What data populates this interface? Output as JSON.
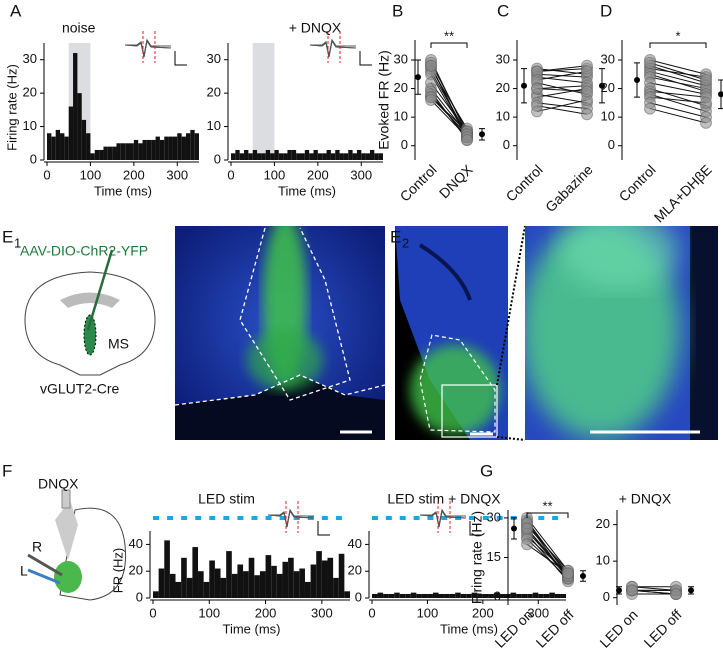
{
  "panels": [
    {
      "label": "A"
    },
    {
      "label": "B"
    },
    {
      "label": "C"
    },
    {
      "label": "D"
    },
    {
      "label": "E",
      "sub": "1"
    },
    {
      "label": "E",
      "sub": "2"
    },
    {
      "label": "F"
    },
    {
      "label": "G"
    }
  ],
  "schematics": {
    "virus": "AAV-DIO-ChR2-YFP",
    "region": "MS",
    "mouse": "vGLUT2-Cre",
    "drug": "DNQX",
    "right": "R",
    "left": "L"
  },
  "chart_data": [
    {
      "type": "histogram",
      "annotation": "noise",
      "shade": [
        50,
        100
      ],
      "xlabel": "Time (ms)",
      "ylabel": "Firing rate (Hz)",
      "bins": [
        0,
        10,
        20,
        30,
        40,
        50,
        60,
        70,
        80,
        90,
        100,
        110,
        120,
        130,
        140,
        150,
        160,
        170,
        180,
        190,
        200,
        210,
        220,
        230,
        240,
        250,
        260,
        270,
        280,
        290,
        300,
        310,
        320,
        330,
        340,
        350
      ],
      "values": [
        8,
        7,
        9,
        8,
        7,
        16,
        32,
        20,
        12,
        8,
        2,
        3,
        3,
        4,
        4,
        4,
        5,
        5,
        5,
        5,
        6,
        5,
        6,
        6,
        6,
        7,
        6,
        7,
        7,
        7,
        8,
        7,
        8,
        9,
        8
      ],
      "xlim": [
        0,
        350
      ],
      "ylim": [
        0,
        35
      ],
      "xticks": [
        0,
        100,
        200,
        300
      ],
      "yticks": [
        0,
        10,
        20,
        30
      ]
    },
    {
      "type": "histogram",
      "title": "+ DNQX",
      "shade": [
        50,
        100
      ],
      "xlabel": "Time (ms)",
      "bins": [
        0,
        10,
        20,
        30,
        40,
        50,
        60,
        70,
        80,
        90,
        100,
        110,
        120,
        130,
        140,
        150,
        160,
        170,
        180,
        190,
        200,
        210,
        220,
        230,
        240,
        250,
        260,
        270,
        280,
        290,
        300,
        310,
        320,
        330,
        340,
        350
      ],
      "values": [
        2,
        3,
        2,
        3,
        2,
        3,
        2,
        2,
        3,
        2,
        3,
        2,
        2,
        3,
        3,
        2,
        2,
        3,
        2,
        3,
        2,
        2,
        3,
        2,
        3,
        2,
        2,
        3,
        2,
        3,
        2,
        2,
        3,
        2,
        2
      ],
      "xlim": [
        0,
        350
      ],
      "ylim": [
        0,
        35
      ],
      "xticks": [
        0,
        100,
        200,
        300
      ],
      "yticks": [
        0,
        10,
        20,
        30
      ]
    },
    {
      "type": "paired",
      "ylabel": "Evoked FR (Hz)",
      "annotation": "**",
      "categories": [
        "Control",
        "DNQX"
      ],
      "values": [
        [
          30,
          4
        ],
        [
          29,
          5
        ],
        [
          28,
          3
        ],
        [
          27,
          6
        ],
        [
          26,
          4
        ],
        [
          25,
          3
        ],
        [
          22,
          5
        ],
        [
          20,
          4
        ],
        [
          19,
          2
        ],
        [
          18,
          3
        ],
        [
          17,
          5
        ],
        [
          17,
          4
        ],
        [
          16,
          3
        ],
        [
          28,
          2
        ]
      ],
      "mean": [
        24,
        4
      ],
      "error": [
        6,
        2
      ],
      "ylim": [
        -5,
        37
      ],
      "yticks": [
        0,
        10,
        20,
        30
      ]
    },
    {
      "type": "paired",
      "categories": [
        "Control",
        "Gabazine"
      ],
      "values": [
        [
          25,
          24
        ],
        [
          27,
          25
        ],
        [
          26,
          27
        ],
        [
          24,
          22
        ],
        [
          22,
          18
        ],
        [
          20,
          21
        ],
        [
          18,
          15
        ],
        [
          17,
          20
        ],
        [
          15,
          13
        ],
        [
          12,
          16
        ],
        [
          26,
          28
        ],
        [
          23,
          26
        ],
        [
          14,
          11
        ],
        [
          20,
          19
        ]
      ],
      "mean": [
        21,
        21
      ],
      "error": [
        6,
        6
      ],
      "ylim": [
        -5,
        37
      ],
      "yticks": [
        0,
        10,
        20,
        30
      ]
    },
    {
      "type": "paired",
      "annotation": "*",
      "categories": [
        "Control",
        "MLA+DHβE"
      ],
      "values": [
        [
          30,
          25
        ],
        [
          28,
          22
        ],
        [
          27,
          24
        ],
        [
          26,
          21
        ],
        [
          25,
          19
        ],
        [
          24,
          20
        ],
        [
          22,
          18
        ],
        [
          20,
          14
        ],
        [
          19,
          17
        ],
        [
          18,
          12
        ],
        [
          17,
          15
        ],
        [
          15,
          10
        ],
        [
          13,
          8
        ],
        [
          29,
          23
        ]
      ],
      "mean": [
        23,
        18
      ],
      "error": [
        6,
        5
      ],
      "ylim": [
        -5,
        37
      ],
      "yticks": [
        0,
        10,
        20,
        30
      ]
    },
    {
      "type": "histogram",
      "title": "LED stim",
      "xlabel": "Time (ms)",
      "ylabel": "FR (Hz)",
      "bins": [
        0,
        10,
        20,
        30,
        40,
        50,
        60,
        70,
        80,
        90,
        100,
        110,
        120,
        130,
        140,
        150,
        160,
        170,
        180,
        190,
        200,
        210,
        220,
        230,
        240,
        250,
        260,
        270,
        280,
        290,
        300,
        310,
        320,
        330,
        340,
        350
      ],
      "values": [
        5,
        22,
        43,
        18,
        12,
        30,
        15,
        38,
        20,
        12,
        28,
        22,
        15,
        35,
        18,
        25,
        20,
        30,
        17,
        20,
        32,
        24,
        18,
        27,
        30,
        20,
        22,
        12,
        25,
        35,
        28,
        30,
        15,
        33,
        5
      ],
      "xlim": [
        0,
        350
      ],
      "ylim": [
        0,
        50
      ],
      "xticks": [
        0,
        100,
        200,
        300
      ],
      "yticks": [
        0,
        20,
        40
      ]
    },
    {
      "type": "histogram",
      "title": "LED stim + DNQX",
      "xlabel": "Time (ms)",
      "bins": [
        0,
        10,
        20,
        30,
        40,
        50,
        60,
        70,
        80,
        90,
        100,
        110,
        120,
        130,
        140,
        150,
        160,
        170,
        180,
        190,
        200,
        210,
        220,
        230,
        240,
        250,
        260,
        270,
        280,
        290,
        300,
        310,
        320,
        330,
        340,
        350
      ],
      "values": [
        3,
        4,
        3,
        3,
        4,
        3,
        3,
        4,
        3,
        3,
        3,
        4,
        3,
        3,
        3,
        4,
        3,
        3,
        4,
        3,
        3,
        3,
        4,
        3,
        3,
        4,
        3,
        3,
        3,
        4,
        3,
        3,
        4,
        3,
        3
      ],
      "xlim": [
        0,
        350
      ],
      "ylim": [
        0,
        50
      ],
      "xticks": [
        0,
        100,
        200,
        300
      ],
      "yticks": [
        0,
        20,
        40
      ]
    },
    {
      "type": "paired",
      "ylabel": "Firing rate (Hz)",
      "annotation": "**",
      "categories": [
        "LED on",
        "LED off"
      ],
      "values": [
        [
          29,
          8
        ],
        [
          28,
          9
        ],
        [
          27,
          10
        ],
        [
          26,
          7
        ],
        [
          25,
          8
        ],
        [
          24,
          6
        ],
        [
          23,
          9
        ],
        [
          22,
          7
        ],
        [
          30,
          10
        ],
        [
          28,
          7
        ],
        [
          26,
          8
        ],
        [
          20,
          9
        ]
      ],
      "mean": [
        26,
        8
      ],
      "error": [
        4,
        2
      ],
      "ylim": [
        -3,
        33
      ],
      "yticks": [
        0,
        15,
        30
      ]
    },
    {
      "type": "paired",
      "title": "+ DNQX",
      "categories": [
        "LED on",
        "LED off"
      ],
      "values": [
        [
          2,
          2
        ],
        [
          2,
          1
        ],
        [
          3,
          2
        ],
        [
          1,
          1
        ],
        [
          2,
          2
        ],
        [
          3,
          3
        ],
        [
          2,
          1
        ]
      ],
      "mean": [
        2,
        2
      ],
      "error": [
        1,
        1
      ],
      "ylim": [
        -2,
        24
      ],
      "yticks": [
        0,
        10,
        20
      ]
    }
  ]
}
